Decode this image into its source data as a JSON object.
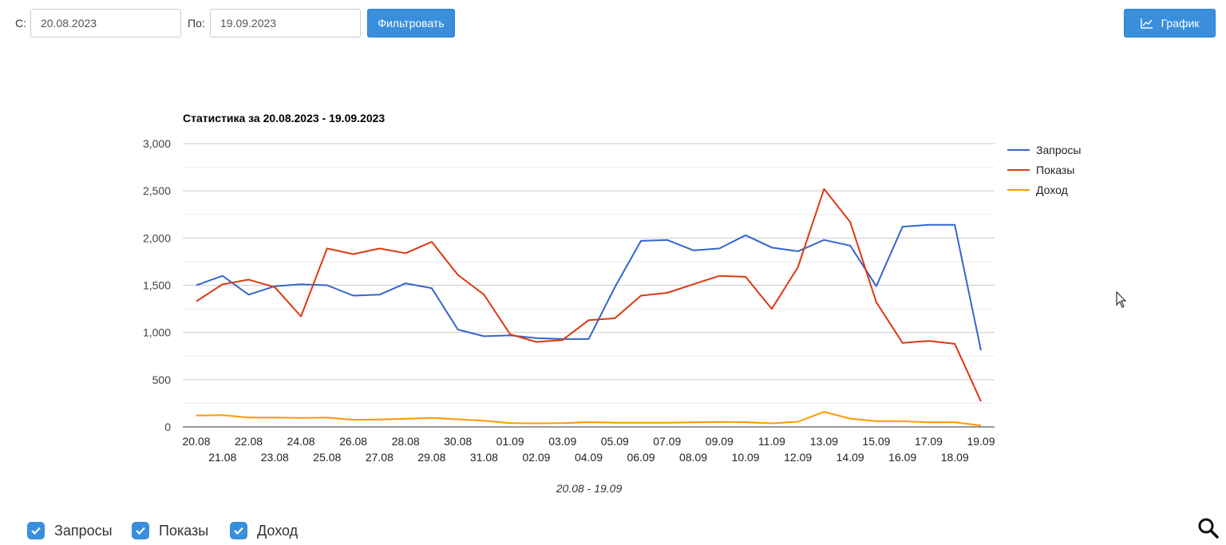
{
  "filters": {
    "from_label": "С:",
    "from_value": "20.08.2023",
    "to_label": "По:",
    "to_value": "19.09.2023",
    "filter_button": "Фильтровать",
    "chart_button": "График",
    "chart_button_icon": "line-chart-icon"
  },
  "chart_data": {
    "type": "line",
    "title": "Статистика за 20.08.2023 - 19.09.2023",
    "xlabel": "20.08 - 19.09",
    "ylabel": "",
    "ylim": [
      0,
      3000
    ],
    "yticks": [
      "0",
      "500",
      "1,000",
      "1,500",
      "2,000",
      "2,500",
      "3,000"
    ],
    "ytick_values": [
      0,
      500,
      1000,
      1500,
      2000,
      2500,
      3000
    ],
    "grid": true,
    "legend_position": "right",
    "x": [
      "20.08",
      "21.08",
      "22.08",
      "23.08",
      "24.08",
      "25.08",
      "26.08",
      "27.08",
      "28.08",
      "29.08",
      "30.08",
      "31.08",
      "01.09",
      "02.09",
      "03.09",
      "04.09",
      "05.09",
      "06.09",
      "07.09",
      "08.09",
      "09.09",
      "10.09",
      "11.09",
      "12.09",
      "13.09",
      "14.09",
      "15.09",
      "16.09",
      "17.09",
      "18.09",
      "19.09"
    ],
    "series": [
      {
        "name": "Запросы",
        "color": "#3366cc",
        "values": [
          1500,
          1600,
          1400,
          1490,
          1510,
          1500,
          1390,
          1400,
          1520,
          1470,
          1030,
          960,
          970,
          940,
          930,
          930,
          1480,
          1970,
          1980,
          1870,
          1890,
          2030,
          1900,
          1860,
          1980,
          1920,
          1490,
          2120,
          2140,
          2140,
          810
        ]
      },
      {
        "name": "Показы",
        "color": "#dc3912",
        "values": [
          1330,
          1510,
          1560,
          1480,
          1170,
          1890,
          1830,
          1890,
          1840,
          1960,
          1610,
          1400,
          980,
          900,
          920,
          1130,
          1150,
          1390,
          1420,
          1510,
          1600,
          1590,
          1250,
          1690,
          2520,
          2170,
          1320,
          890,
          910,
          880,
          270
        ]
      },
      {
        "name": "Доход",
        "color": "#ff9900",
        "values": [
          120,
          125,
          100,
          100,
          95,
          100,
          75,
          78,
          85,
          95,
          80,
          65,
          40,
          38,
          40,
          50,
          45,
          45,
          45,
          48,
          52,
          50,
          38,
          55,
          160,
          88,
          60,
          60,
          48,
          48,
          15
        ]
      }
    ]
  },
  "toggles": [
    {
      "label": "Запросы"
    },
    {
      "label": "Показы"
    },
    {
      "label": "Доход"
    }
  ],
  "icons": {
    "search": "search-icon",
    "cursor": "mouse-cursor-icon",
    "check": "check-icon"
  }
}
